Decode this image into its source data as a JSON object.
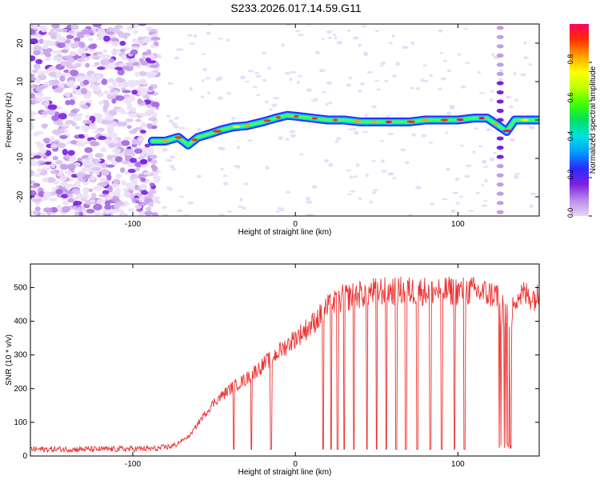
{
  "title": "S233.2026.017.14.59.G11",
  "chart_data": [
    {
      "type": "heatmap",
      "xlabel": "Height of straight line (km)",
      "ylabel": "Frequency (Hz)",
      "xlim": [
        -163,
        150
      ],
      "ylim": [
        -25,
        25
      ],
      "x_ticks": [
        -100,
        0,
        100
      ],
      "y_ticks": [
        -20,
        -10,
        0,
        10,
        20
      ],
      "noise_region_x": [
        -163,
        -85
      ],
      "ridge": {
        "name": "Dominant frequency ridge",
        "x": [
          -88,
          -80,
          -72,
          -66,
          -60,
          -52,
          -45,
          -38,
          -30,
          -20,
          -12,
          -5,
          0,
          10,
          20,
          30,
          40,
          50,
          60,
          70,
          80,
          90,
          100,
          110,
          118,
          125,
          130,
          135,
          140,
          150
        ],
        "y": [
          -5.5,
          -5.5,
          -4.5,
          -6.5,
          -4.5,
          -3.5,
          -2.5,
          -1.8,
          -1.5,
          -0.5,
          0.5,
          1.2,
          1.0,
          0.5,
          0.0,
          0.0,
          -0.5,
          -0.5,
          -0.5,
          -0.5,
          0.0,
          0.0,
          0.0,
          0.5,
          0.5,
          -1.5,
          -3.0,
          0.0,
          0.0,
          0.0
        ]
      },
      "vertical_artifact_x": 126,
      "colorbar": {
        "label": "Normalized spectral amplitude",
        "range": [
          0,
          1
        ],
        "ticks": [
          "0.0",
          "0.2",
          "0.4",
          "0.6",
          "0.8"
        ],
        "colors": [
          "#e6d8f5",
          "#b98ae8",
          "#7a1fe0",
          "#2b2bff",
          "#00a0ff",
          "#00e0e0",
          "#00e060",
          "#40ff00",
          "#c0ff00",
          "#ffff00",
          "#ffa000",
          "#ff3000",
          "#ff0060"
        ]
      }
    },
    {
      "type": "line",
      "xlabel": "Height of straight line (km)",
      "ylabel": "SNR (10 * v/v)",
      "xlim": [
        -163,
        150
      ],
      "ylim": [
        0,
        570
      ],
      "x_ticks": [
        -100,
        0,
        100
      ],
      "y_ticks": [
        0,
        100,
        200,
        300,
        400,
        500
      ],
      "series": [
        {
          "name": "SNR",
          "color": "#ee3030",
          "envelope_x": [
            -163,
            -120,
            -85,
            -75,
            -65,
            -58,
            -50,
            -40,
            -30,
            -20,
            -10,
            0,
            10,
            20,
            30,
            50,
            70,
            90,
            110,
            120,
            125,
            133,
            140,
            150
          ],
          "envelope_y": [
            20,
            20,
            22,
            30,
            60,
            110,
            160,
            200,
            230,
            270,
            310,
            350,
            390,
            440,
            470,
            490,
            490,
            490,
            490,
            480,
            480,
            470,
            480,
            470
          ],
          "dropouts_x": [
            -38,
            -27,
            -15,
            17,
            22,
            26,
            30,
            36,
            44,
            50,
            56,
            62,
            68,
            75,
            83,
            90,
            98,
            104
          ],
          "dropout_level": 20,
          "dense_dropout_band_x": [
            125,
            134
          ]
        }
      ]
    }
  ]
}
